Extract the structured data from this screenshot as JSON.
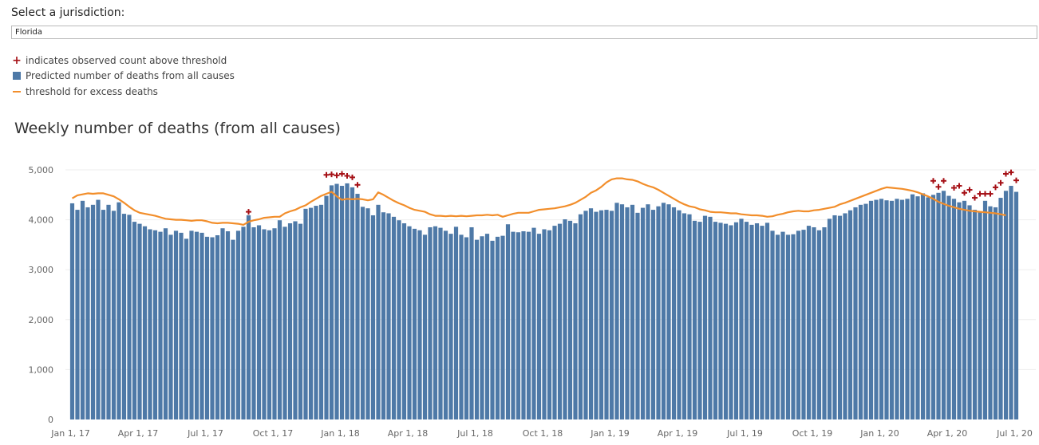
{
  "selector": {
    "label": "Select a jurisdiction:",
    "value": "Florida"
  },
  "legend": {
    "items": [
      {
        "symbol": "plus-icon",
        "label": "indicates observed count above threshold",
        "color": "#a50f15"
      },
      {
        "symbol": "square-icon",
        "label": "Predicted number of deaths from all causes",
        "color": "#4e79a7"
      },
      {
        "symbol": "line-icon",
        "label": "threshold for excess deaths",
        "color": "#f28e2b"
      }
    ]
  },
  "chart_data": {
    "type": "bar",
    "title": "Weekly number of deaths (from all causes)",
    "xlabel": "",
    "ylabel": "",
    "ylim": [
      0,
      5000
    ],
    "y_ticks": [
      "0",
      "1,000",
      "2,000",
      "3,000",
      "4,000",
      "5,000"
    ],
    "y_tick_values": [
      0,
      1000,
      2000,
      3000,
      4000,
      5000
    ],
    "grid": true,
    "x_tick_labels": [
      "Jan 1, 17",
      "Apr 1, 17",
      "Jul 1, 17",
      "Oct 1, 17",
      "Jan 1, 18",
      "Apr 1, 18",
      "Jul 1, 18",
      "Oct 1, 18",
      "Jan 1, 19",
      "Apr 1, 19",
      "Jul 1, 19",
      "Oct 1, 19",
      "Jan 1, 20",
      "Apr 1, 20",
      "Jul 1, 20"
    ],
    "x_tick_weeks": [
      0,
      13,
      26,
      39,
      52,
      65,
      78,
      91,
      104,
      117,
      130,
      143,
      156,
      169,
      182
    ],
    "colors": {
      "bars": "#4e79a7",
      "threshold": "#f28e2b",
      "excess_marker": "#a50f15"
    },
    "weekly_deaths": [
      4330,
      4200,
      4380,
      4250,
      4300,
      4400,
      4200,
      4300,
      4180,
      4350,
      4120,
      4100,
      3960,
      3920,
      3870,
      3810,
      3790,
      3760,
      3830,
      3700,
      3780,
      3740,
      3620,
      3780,
      3760,
      3740,
      3660,
      3650,
      3690,
      3830,
      3770,
      3600,
      3780,
      3860,
      4090,
      3850,
      3890,
      3810,
      3790,
      3830,
      3990,
      3860,
      3930,
      3970,
      3920,
      4220,
      4240,
      4280,
      4300,
      4480,
      4690,
      4720,
      4680,
      4730,
      4650,
      4520,
      4260,
      4230,
      4090,
      4300,
      4150,
      4130,
      4060,
      3990,
      3930,
      3870,
      3820,
      3790,
      3700,
      3850,
      3870,
      3840,
      3780,
      3720,
      3860,
      3700,
      3650,
      3850,
      3600,
      3670,
      3720,
      3580,
      3660,
      3680,
      3910,
      3760,
      3750,
      3770,
      3760,
      3840,
      3720,
      3810,
      3790,
      3880,
      3920,
      4010,
      3980,
      3930,
      4110,
      4180,
      4230,
      4160,
      4190,
      4200,
      4180,
      4340,
      4310,
      4250,
      4300,
      4140,
      4240,
      4310,
      4200,
      4270,
      4340,
      4310,
      4250,
      4190,
      4130,
      4110,
      3980,
      3960,
      4080,
      4060,
      3960,
      3940,
      3920,
      3890,
      3950,
      4020,
      3960,
      3900,
      3930,
      3880,
      3940,
      3780,
      3700,
      3760,
      3700,
      3710,
      3780,
      3800,
      3880,
      3850,
      3790,
      3850,
      4020,
      4090,
      4080,
      4130,
      4190,
      4250,
      4300,
      4320,
      4380,
      4400,
      4420,
      4390,
      4380,
      4420,
      4400,
      4420,
      4510,
      4470,
      4530,
      4450,
      4500,
      4540,
      4580,
      4480,
      4420,
      4350,
      4380,
      4290,
      4200,
      4170,
      4380,
      4270,
      4250,
      4440,
      4580,
      4680,
      4560
    ],
    "threshold": [
      4430,
      4490,
      4510,
      4530,
      4520,
      4530,
      4530,
      4500,
      4470,
      4410,
      4340,
      4260,
      4190,
      4140,
      4120,
      4100,
      4080,
      4050,
      4020,
      4010,
      4000,
      4000,
      3990,
      3980,
      3990,
      3990,
      3970,
      3940,
      3930,
      3940,
      3940,
      3930,
      3920,
      3900,
      3960,
      3990,
      4010,
      4040,
      4050,
      4060,
      4060,
      4130,
      4170,
      4200,
      4250,
      4290,
      4360,
      4420,
      4480,
      4520,
      4560,
      4470,
      4400,
      4420,
      4410,
      4420,
      4410,
      4390,
      4410,
      4550,
      4500,
      4440,
      4380,
      4330,
      4290,
      4240,
      4200,
      4180,
      4160,
      4110,
      4080,
      4080,
      4070,
      4080,
      4070,
      4080,
      4070,
      4080,
      4090,
      4090,
      4100,
      4090,
      4100,
      4060,
      4090,
      4120,
      4140,
      4140,
      4140,
      4170,
      4200,
      4210,
      4220,
      4230,
      4250,
      4270,
      4300,
      4340,
      4400,
      4460,
      4540,
      4590,
      4660,
      4750,
      4810,
      4830,
      4830,
      4810,
      4800,
      4770,
      4720,
      4680,
      4650,
      4600,
      4540,
      4480,
      4420,
      4360,
      4310,
      4270,
      4250,
      4210,
      4190,
      4160,
      4150,
      4150,
      4140,
      4130,
      4130,
      4110,
      4100,
      4090,
      4090,
      4080,
      4060,
      4070,
      4100,
      4120,
      4150,
      4170,
      4180,
      4170,
      4170,
      4190,
      4200,
      4220,
      4240,
      4260,
      4310,
      4340,
      4380,
      4420,
      4460,
      4500,
      4540,
      4580,
      4620,
      4650,
      4640,
      4630,
      4620,
      4600,
      4580,
      4550,
      4510,
      4470,
      4420,
      4360,
      4320,
      4280,
      4250,
      4220,
      4200,
      4180,
      4170,
      4160,
      4150,
      4140,
      4130,
      4110,
      4090
    ],
    "excess_weeks": [
      49,
      50,
      51,
      52,
      53,
      54,
      55,
      166,
      167,
      168,
      170,
      171,
      172,
      173,
      174,
      175,
      176,
      177,
      178,
      179,
      180,
      181,
      182
    ],
    "excess_extra_weeks": [
      34
    ],
    "excess_values": {
      "34": 4160,
      "49": 4900,
      "50": 4910,
      "51": 4890,
      "52": 4920,
      "53": 4880,
      "54": 4850,
      "55": 4700,
      "166": 4780,
      "167": 4660,
      "168": 4780,
      "170": 4640,
      "171": 4680,
      "172": 4540,
      "173": 4600,
      "174": 4440,
      "175": 4520,
      "176": 4520,
      "177": 4520,
      "178": 4650,
      "179": 4740,
      "180": 4920,
      "181": 4950,
      "182": 4790
    }
  }
}
